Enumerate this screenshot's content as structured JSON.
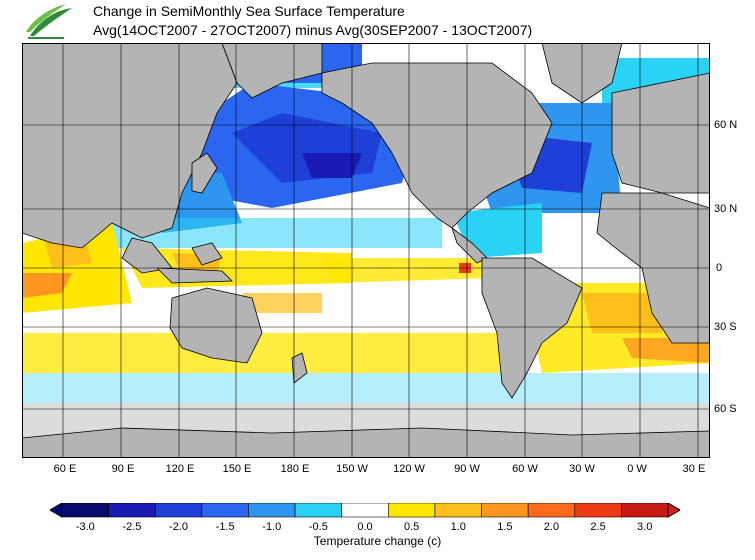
{
  "title": {
    "line1": "Change in SemiMonthly Sea Surface Temperature",
    "line2": "Avg(14OCT2007 - 27OCT2007) minus Avg(30SEP2007 - 13OCT2007)"
  },
  "map": {
    "lon_labels": [
      "60 E",
      "90 E",
      "120 E",
      "150 E",
      "180 E",
      "150 W",
      "120 W",
      "90 W",
      "60 W",
      "30 W",
      "0 W",
      "30 E"
    ],
    "lat_labels": [
      "60 N",
      "30 N",
      "0",
      "30 S",
      "60 S"
    ]
  },
  "legend": {
    "label": "Temperature change  (c)",
    "ticks": [
      "-3.0",
      "-2.5",
      "-2.0",
      "-1.5",
      "-1.0",
      "-0.5",
      "0.0",
      "0.5",
      "1.0",
      "1.5",
      "2.0",
      "2.5",
      "3.0"
    ],
    "colors": [
      "#0a0a6e",
      "#1a1ab4",
      "#1e40d8",
      "#2a66f0",
      "#2e96f0",
      "#2ad2f5",
      "#ffffff",
      "#ffe600",
      "#ffbf1a",
      "#ff9620",
      "#ff6a1c",
      "#ee3a14",
      "#c81a14"
    ],
    "under_color": "#050578",
    "over_color": "#d21e1e"
  },
  "colors": {
    "land": "#b4b4b4",
    "ice": "#dcdcdc",
    "border": "#000000"
  }
}
